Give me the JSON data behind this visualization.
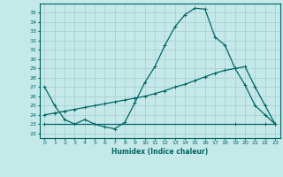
{
  "title": "",
  "xlabel": "Humidex (Indice chaleur)",
  "bg_color": "#c5e8e8",
  "grid_color": "#a8cccc",
  "line_color": "#006666",
  "xlim": [
    -0.5,
    23.5
  ],
  "ylim": [
    21.5,
    36.0
  ],
  "xtick_labels": [
    "0",
    "1",
    "2",
    "3",
    "4",
    "5",
    "6",
    "7",
    "8",
    "9",
    "10",
    "11",
    "12",
    "13",
    "14",
    "15",
    "16",
    "17",
    "18",
    "19",
    "20",
    "21",
    "22",
    "23"
  ],
  "ytick_labels": [
    "22",
    "23",
    "24",
    "25",
    "26",
    "27",
    "28",
    "29",
    "30",
    "31",
    "32",
    "33",
    "34",
    "35"
  ],
  "ytick_vals": [
    22,
    23,
    24,
    25,
    26,
    27,
    28,
    29,
    30,
    31,
    32,
    33,
    34,
    35
  ],
  "curve1_x": [
    0,
    1,
    2,
    3,
    4,
    5,
    6,
    7,
    8,
    9,
    10,
    11,
    12,
    13,
    14,
    15,
    16,
    17,
    18,
    19,
    20,
    21,
    22,
    23
  ],
  "curve1_y": [
    27.0,
    25.0,
    23.5,
    23.0,
    23.5,
    23.0,
    22.7,
    22.5,
    23.2,
    25.3,
    27.5,
    29.2,
    31.5,
    33.5,
    34.8,
    35.5,
    35.4,
    32.4,
    31.5,
    29.0,
    27.2,
    25.0,
    24.0,
    23.0
  ],
  "curve2_x": [
    0,
    1,
    2,
    3,
    4,
    5,
    6,
    7,
    8,
    9,
    10,
    11,
    12,
    13,
    14,
    15,
    16,
    17,
    18,
    19,
    20,
    21,
    22,
    23
  ],
  "curve2_y": [
    24.0,
    24.2,
    24.4,
    24.6,
    24.8,
    25.0,
    25.2,
    25.4,
    25.6,
    25.8,
    26.0,
    26.3,
    26.6,
    27.0,
    27.3,
    27.7,
    28.1,
    28.5,
    28.8,
    29.0,
    29.2,
    27.0,
    25.0,
    23.0
  ],
  "curve3_x": [
    0,
    19,
    22,
    23
  ],
  "curve3_y": [
    23.0,
    23.0,
    23.0,
    23.0
  ]
}
